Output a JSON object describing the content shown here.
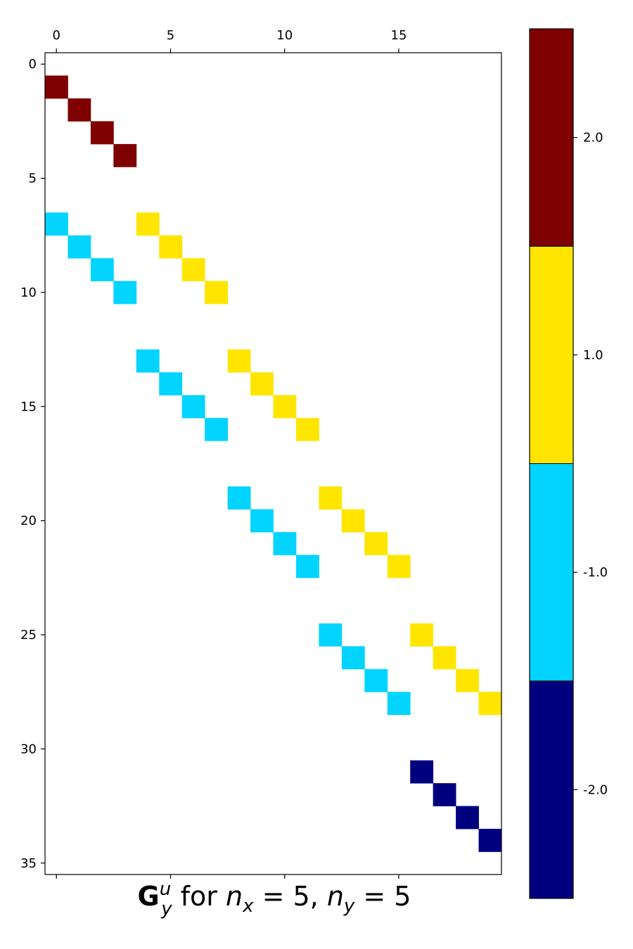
{
  "chart_data": {
    "type": "heatmap",
    "title": {
      "main": "G",
      "sup": "u",
      "sub": "y",
      "rest1": " for ",
      "nx": "n",
      "nx_sub": "x",
      "eq1": " = 5, ",
      "ny": "n",
      "ny_sub": "y",
      "eq2": " = 5"
    },
    "n_rows": 36,
    "n_cols": 20,
    "x_ticks": [
      "0",
      "5",
      "10",
      "15"
    ],
    "x_tick_values": [
      0,
      5,
      10,
      15
    ],
    "y_ticks": [
      "0",
      "5",
      "10",
      "15",
      "20",
      "25",
      "30",
      "35"
    ],
    "y_tick_values": [
      0,
      5,
      10,
      15,
      20,
      25,
      30,
      35
    ],
    "colorbar": {
      "levels": [
        -2.0,
        -1.0,
        1.0,
        2.0
      ],
      "tick_labels": [
        "-2.0",
        "-1.0",
        "1.0",
        "2.0"
      ],
      "colors": [
        "#00007f",
        "#00d4ff",
        "#ffe500",
        "#7f0000"
      ]
    },
    "cells": [
      {
        "row": 1,
        "col": 0,
        "value": 2.0
      },
      {
        "row": 2,
        "col": 1,
        "value": 2.0
      },
      {
        "row": 3,
        "col": 2,
        "value": 2.0
      },
      {
        "row": 4,
        "col": 3,
        "value": 2.0
      },
      {
        "row": 7,
        "col": 0,
        "value": -1.0
      },
      {
        "row": 8,
        "col": 1,
        "value": -1.0
      },
      {
        "row": 9,
        "col": 2,
        "value": -1.0
      },
      {
        "row": 10,
        "col": 3,
        "value": -1.0
      },
      {
        "row": 7,
        "col": 4,
        "value": 1.0
      },
      {
        "row": 8,
        "col": 5,
        "value": 1.0
      },
      {
        "row": 9,
        "col": 6,
        "value": 1.0
      },
      {
        "row": 10,
        "col": 7,
        "value": 1.0
      },
      {
        "row": 13,
        "col": 4,
        "value": -1.0
      },
      {
        "row": 14,
        "col": 5,
        "value": -1.0
      },
      {
        "row": 15,
        "col": 6,
        "value": -1.0
      },
      {
        "row": 16,
        "col": 7,
        "value": -1.0
      },
      {
        "row": 13,
        "col": 8,
        "value": 1.0
      },
      {
        "row": 14,
        "col": 9,
        "value": 1.0
      },
      {
        "row": 15,
        "col": 10,
        "value": 1.0
      },
      {
        "row": 16,
        "col": 11,
        "value": 1.0
      },
      {
        "row": 19,
        "col": 8,
        "value": -1.0
      },
      {
        "row": 20,
        "col": 9,
        "value": -1.0
      },
      {
        "row": 21,
        "col": 10,
        "value": -1.0
      },
      {
        "row": 22,
        "col": 11,
        "value": -1.0
      },
      {
        "row": 19,
        "col": 12,
        "value": 1.0
      },
      {
        "row": 20,
        "col": 13,
        "value": 1.0
      },
      {
        "row": 21,
        "col": 14,
        "value": 1.0
      },
      {
        "row": 22,
        "col": 15,
        "value": 1.0
      },
      {
        "row": 25,
        "col": 12,
        "value": -1.0
      },
      {
        "row": 26,
        "col": 13,
        "value": -1.0
      },
      {
        "row": 27,
        "col": 14,
        "value": -1.0
      },
      {
        "row": 28,
        "col": 15,
        "value": -1.0
      },
      {
        "row": 25,
        "col": 16,
        "value": 1.0
      },
      {
        "row": 26,
        "col": 17,
        "value": 1.0
      },
      {
        "row": 27,
        "col": 18,
        "value": 1.0
      },
      {
        "row": 28,
        "col": 19,
        "value": 1.0
      },
      {
        "row": 31,
        "col": 16,
        "value": -2.0
      },
      {
        "row": 32,
        "col": 17,
        "value": -2.0
      },
      {
        "row": 33,
        "col": 18,
        "value": -2.0
      },
      {
        "row": 34,
        "col": 19,
        "value": -2.0
      }
    ]
  }
}
